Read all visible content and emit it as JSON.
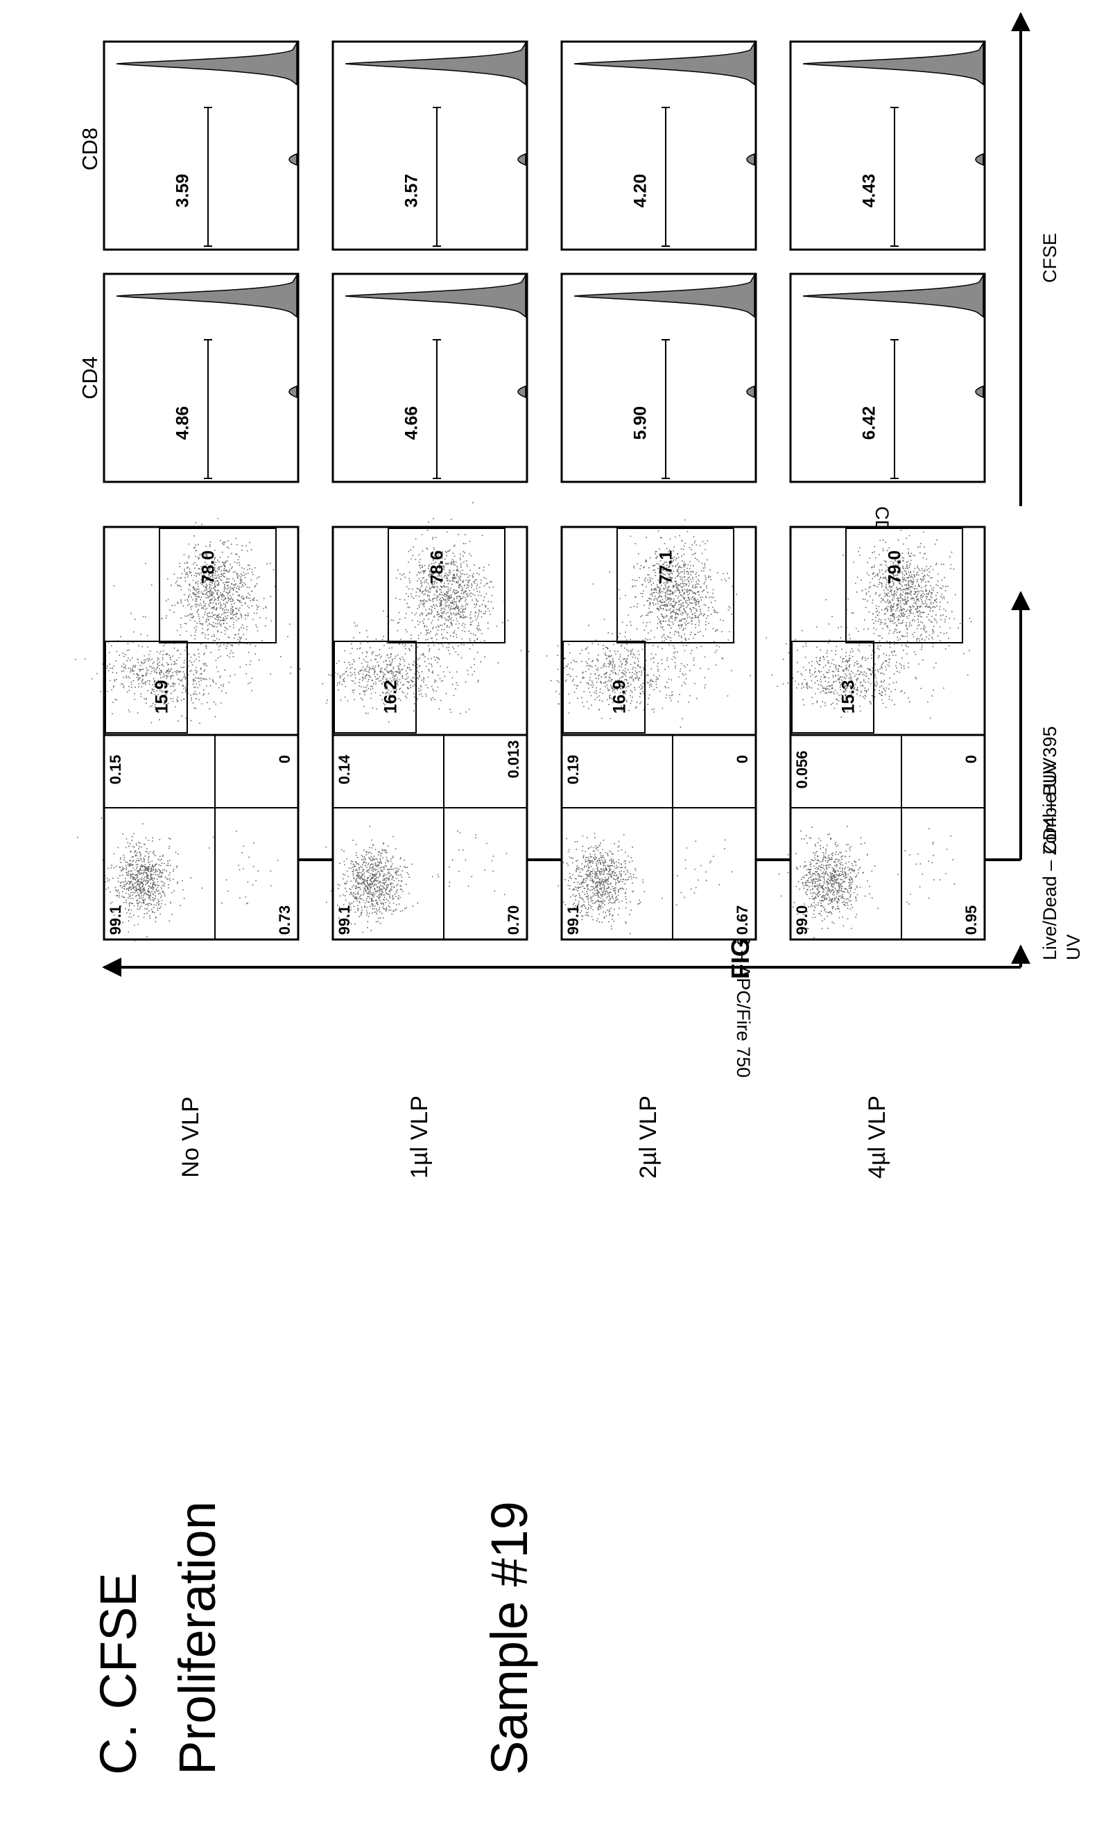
{
  "page": {
    "fig_title": "FIG. 11C",
    "heading_line1": "C. CFSE",
    "heading_line2": "Proliferation",
    "sample": "Sample #19",
    "conditions": [
      "No VLP",
      "1µl VLP",
      "2µl VLP",
      "4µl VLP"
    ],
    "colors": {
      "ink": "#000000",
      "fill": "#8a8a8a"
    }
  },
  "chart_data": [
    {
      "type": "scatter",
      "title": "",
      "xlabel": "Live/Dead – Zombie UV",
      "ylabel": "CD3 – APC/Fire 750",
      "gate": "quadrant",
      "panels": [
        {
          "condition": "No VLP",
          "ul": "99.1",
          "ur": "0.15",
          "ll": "0.73",
          "lr": "0"
        },
        {
          "condition": "1µl VLP",
          "ul": "99.1",
          "ur": "0.14",
          "ll": "0.70",
          "lr": "0.013"
        },
        {
          "condition": "2µl VLP",
          "ul": "99.1",
          "ur": "0.19",
          "ll": "0.67",
          "lr": "0"
        },
        {
          "condition": "4µl VLP",
          "ul": "99.0",
          "ur": "0.056",
          "ll": "0.95",
          "lr": "0"
        }
      ]
    },
    {
      "type": "scatter",
      "title": "",
      "xlabel": "CD4 – BUV395",
      "ylabel": "CD8 – PerCP",
      "gate": "two-rectangles",
      "panels": [
        {
          "condition": "No VLP",
          "cd8": "15.9",
          "cd4": "78.0"
        },
        {
          "condition": "1µl VLP",
          "cd8": "16.2",
          "cd4": "78.6"
        },
        {
          "condition": "2µl VLP",
          "cd8": "16.9",
          "cd4": "77.1"
        },
        {
          "condition": "4µl VLP",
          "cd8": "15.3",
          "cd4": "79.0"
        }
      ]
    },
    {
      "type": "histogram",
      "title": "",
      "xlabel": "CFSE",
      "columns": [
        "CD4",
        "CD8"
      ],
      "panels": [
        {
          "condition": "No VLP",
          "cd4": "4.86",
          "cd8": "3.59"
        },
        {
          "condition": "1µl VLP",
          "cd4": "4.66",
          "cd8": "3.57"
        },
        {
          "condition": "2µl VLP",
          "cd4": "5.90",
          "cd8": "4.20"
        },
        {
          "condition": "4µl VLP",
          "cd4": "6.42",
          "cd8": "4.43"
        }
      ]
    }
  ]
}
